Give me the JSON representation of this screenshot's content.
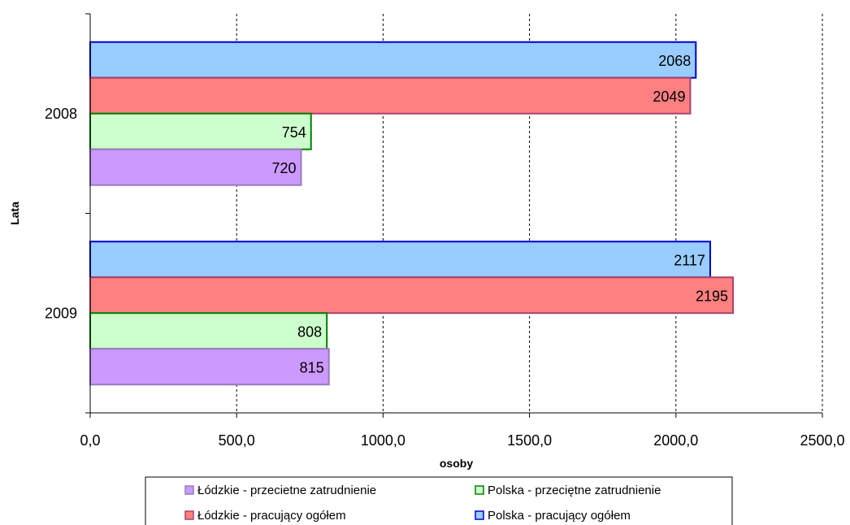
{
  "chart_data": {
    "type": "bar",
    "orientation": "horizontal",
    "categories": [
      "2008",
      "2009"
    ],
    "series": [
      {
        "name": "Łódzkie - przecietne zatrudnienie",
        "values": [
          720,
          815
        ],
        "color": "#cc99ff",
        "border": "#9a7bbf"
      },
      {
        "name": "Polska - przeciętne zatrudnienie",
        "values": [
          754,
          808
        ],
        "color": "#ccffcc",
        "border": "#008000"
      },
      {
        "name": "Łódzkie - pracujący ogółem",
        "values": [
          2049,
          2195
        ],
        "color": "#ff8080",
        "border": "#a8426a"
      },
      {
        "name": "Polska - pracujący ogółem",
        "values": [
          2068,
          2117
        ],
        "color": "#99ccff",
        "border": "#0000cc"
      }
    ],
    "xlabel": "osoby",
    "ylabel": "Lata",
    "xlim": [
      0,
      2500
    ],
    "xticks": [
      0,
      500,
      1000,
      1500,
      2000,
      2500
    ],
    "xtick_labels": [
      "0,0",
      "500,0",
      "1000,0",
      "1500,0",
      "2000,0",
      "2500,0"
    ],
    "grid": "vertical dashed",
    "legend_position": "bottom"
  }
}
